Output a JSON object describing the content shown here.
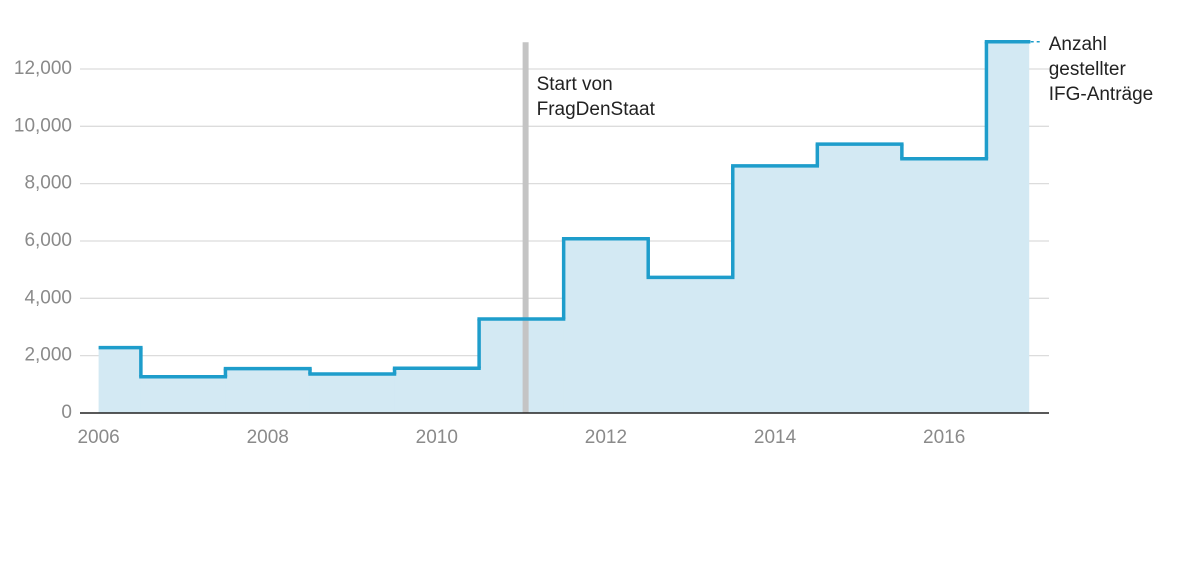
{
  "chart_data": {
    "type": "step",
    "x": [
      2006,
      2007,
      2008,
      2009,
      2010,
      2011,
      2012,
      2013,
      2014,
      2015,
      2016,
      2017
    ],
    "series": [
      {
        "name": "Anzahl gestellter IFG-Anträge",
        "color": "#1e9dcb",
        "values": [
          2280,
          1265,
          1550,
          1360,
          1560,
          3280,
          6080,
          4730,
          8620,
          9380,
          8870,
          12950
        ]
      }
    ],
    "area_color": "#d3e9f3",
    "xlim": [
      2005.78,
      2017.24
    ],
    "xticks": [
      2006,
      2008,
      2010,
      2012,
      2014,
      2016
    ],
    "ylim": [
      0,
      13000
    ],
    "yticks": [
      0,
      {
        "value": 2000,
        "label": "2,000"
      },
      {
        "value": 4000,
        "label": "4,000"
      },
      {
        "value": 6000,
        "label": "6,000"
      },
      {
        "value": 8000,
        "label": "8,000"
      },
      {
        "value": 10000,
        "label": "10,000"
      },
      {
        "value": 12000,
        "label": "12,000"
      }
    ],
    "grid": true,
    "annotation": {
      "x": 2011.05,
      "text": "Start von FragDenStaat"
    }
  }
}
